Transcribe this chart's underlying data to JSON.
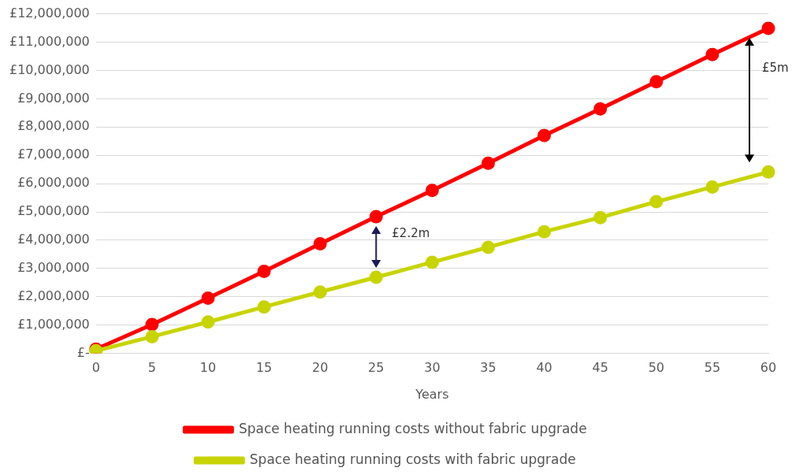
{
  "chart_data": {
    "type": "line",
    "xlabel": "Years",
    "categories": [
      "0",
      "5",
      "10",
      "15",
      "20",
      "25",
      "30",
      "35",
      "40",
      "45",
      "50",
      "55",
      "60"
    ],
    "series": [
      {
        "name": "Space heating running costs without fabric upgrade",
        "color": "#ff0000",
        "values": [
          150000,
          1020000,
          1950000,
          2900000,
          3870000,
          4830000,
          5760000,
          6720000,
          7700000,
          8640000,
          9600000,
          10560000,
          11490000
        ]
      },
      {
        "name": "Space heating running costs with fabric upgrade",
        "color": "#c8d400",
        "values": [
          90000,
          590000,
          1110000,
          1640000,
          2170000,
          2690000,
          3220000,
          3750000,
          4300000,
          4800000,
          5360000,
          5880000,
          6410000
        ]
      }
    ],
    "ylim": [
      0,
      12000000
    ],
    "yticks": [
      {
        "value": 0,
        "label": "£-"
      },
      {
        "value": 1000000,
        "label": "£1,000,000"
      },
      {
        "value": 2000000,
        "label": "£2,000,000"
      },
      {
        "value": 3000000,
        "label": "£3,000,000"
      },
      {
        "value": 4000000,
        "label": "£4,000,000"
      },
      {
        "value": 5000000,
        "label": "£5,000,000"
      },
      {
        "value": 6000000,
        "label": "£6,000,000"
      },
      {
        "value": 7000000,
        "label": "£7,000,000"
      },
      {
        "value": 8000000,
        "label": "£8,000,000"
      },
      {
        "value": 9000000,
        "label": "£9,000,000"
      },
      {
        "value": 10000000,
        "label": "£10,000,000"
      },
      {
        "value": 11000000,
        "label": "£11,000,000"
      },
      {
        "value": 12000000,
        "label": "£12,000,000"
      }
    ],
    "annotations": [
      "£2.2m",
      "£5m"
    ],
    "grid": "y",
    "legend": "bottom",
    "marker": "circle",
    "line_style": "solid"
  }
}
